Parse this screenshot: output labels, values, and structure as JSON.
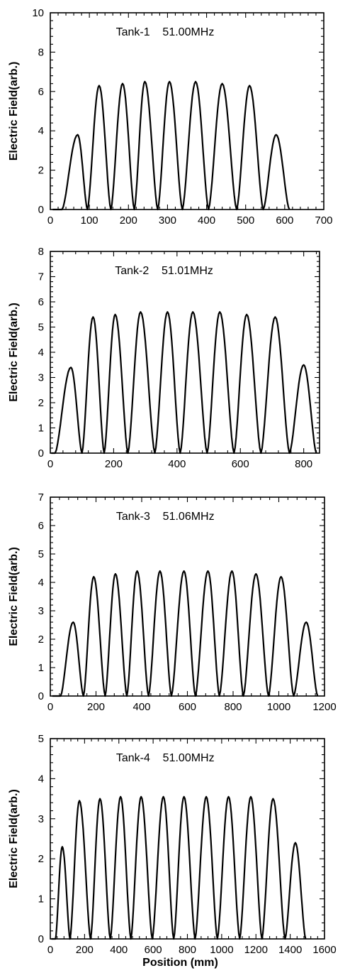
{
  "chart_data": [
    {
      "type": "line",
      "title": "Tank-1    51.00MHz",
      "xlabel": "",
      "ylabel": "Electric Field(arb.)",
      "xlim": [
        0,
        700
      ],
      "ylim": [
        0,
        10
      ],
      "xticks": [
        0,
        100,
        200,
        300,
        400,
        500,
        600,
        700
      ],
      "yticks": [
        0,
        2,
        4,
        6,
        8,
        10
      ],
      "grid": false,
      "series": [
        {
          "peaks_x": [
            70,
            125,
            185,
            242,
            305,
            372,
            440,
            510,
            578
          ],
          "peaks_y": [
            3.8,
            6.3,
            6.4,
            6.5,
            6.5,
            6.5,
            6.4,
            6.3,
            3.8
          ],
          "zeros_x": [
            30,
            95,
            155,
            215,
            275,
            338,
            405,
            477,
            545,
            612
          ]
        }
      ]
    },
    {
      "type": "line",
      "title": "Tank-2    51.01MHz",
      "xlabel": "",
      "ylabel": "Electric Field(arb.)",
      "xlim": [
        0,
        850
      ],
      "ylim": [
        0,
        8
      ],
      "xticks": [
        0,
        200,
        400,
        600,
        800
      ],
      "yticks": [
        0,
        1,
        2,
        3,
        4,
        5,
        6,
        7,
        8
      ],
      "grid": false,
      "series": [
        {
          "peaks_x": [
            65,
            135,
            205,
            285,
            370,
            450,
            535,
            620,
            710,
            800
          ],
          "peaks_y": [
            3.4,
            5.4,
            5.5,
            5.6,
            5.6,
            5.6,
            5.6,
            5.5,
            5.4,
            3.5
          ],
          "zeros_x": [
            15,
            100,
            170,
            245,
            330,
            410,
            495,
            580,
            665,
            755,
            840
          ]
        }
      ]
    },
    {
      "type": "line",
      "title": "Tank-3    51.06MHz",
      "xlabel": "",
      "ylabel": "Electric Field(arb.)",
      "xlim": [
        0,
        1200
      ],
      "ylim": [
        0,
        7
      ],
      "xticks": [
        0,
        200,
        400,
        600,
        800,
        1000,
        1200
      ],
      "yticks": [
        0,
        1,
        2,
        3,
        4,
        5,
        6,
        7
      ],
      "grid": false,
      "series": [
        {
          "peaks_x": [
            100,
            190,
            285,
            380,
            480,
            585,
            690,
            795,
            900,
            1010,
            1120
          ],
          "peaks_y": [
            2.6,
            4.2,
            4.3,
            4.4,
            4.4,
            4.4,
            4.4,
            4.4,
            4.3,
            4.2,
            2.6
          ],
          "zeros_x": [
            45,
            145,
            240,
            335,
            430,
            530,
            635,
            740,
            845,
            955,
            1065,
            1170
          ]
        }
      ]
    },
    {
      "type": "line",
      "title": "Tank-4    51.00MHz",
      "xlabel": "Position (mm)",
      "ylabel": "Electric Field(arb.)",
      "xlim": [
        0,
        1600
      ],
      "ylim": [
        0,
        5
      ],
      "xticks": [
        0,
        200,
        400,
        600,
        800,
        1000,
        1200,
        1400,
        1600
      ],
      "yticks": [
        0,
        1,
        2,
        3,
        4,
        5
      ],
      "grid": false,
      "series": [
        {
          "peaks_x": [
            70,
            170,
            290,
            410,
            530,
            660,
            780,
            910,
            1040,
            1170,
            1300,
            1430
          ],
          "peaks_y": [
            2.3,
            3.45,
            3.5,
            3.55,
            3.55,
            3.55,
            3.55,
            3.55,
            3.55,
            3.55,
            3.5,
            2.4
          ],
          "zeros_x": [
            30,
            115,
            235,
            350,
            470,
            595,
            720,
            845,
            975,
            1105,
            1235,
            1370,
            1490
          ]
        }
      ]
    }
  ]
}
